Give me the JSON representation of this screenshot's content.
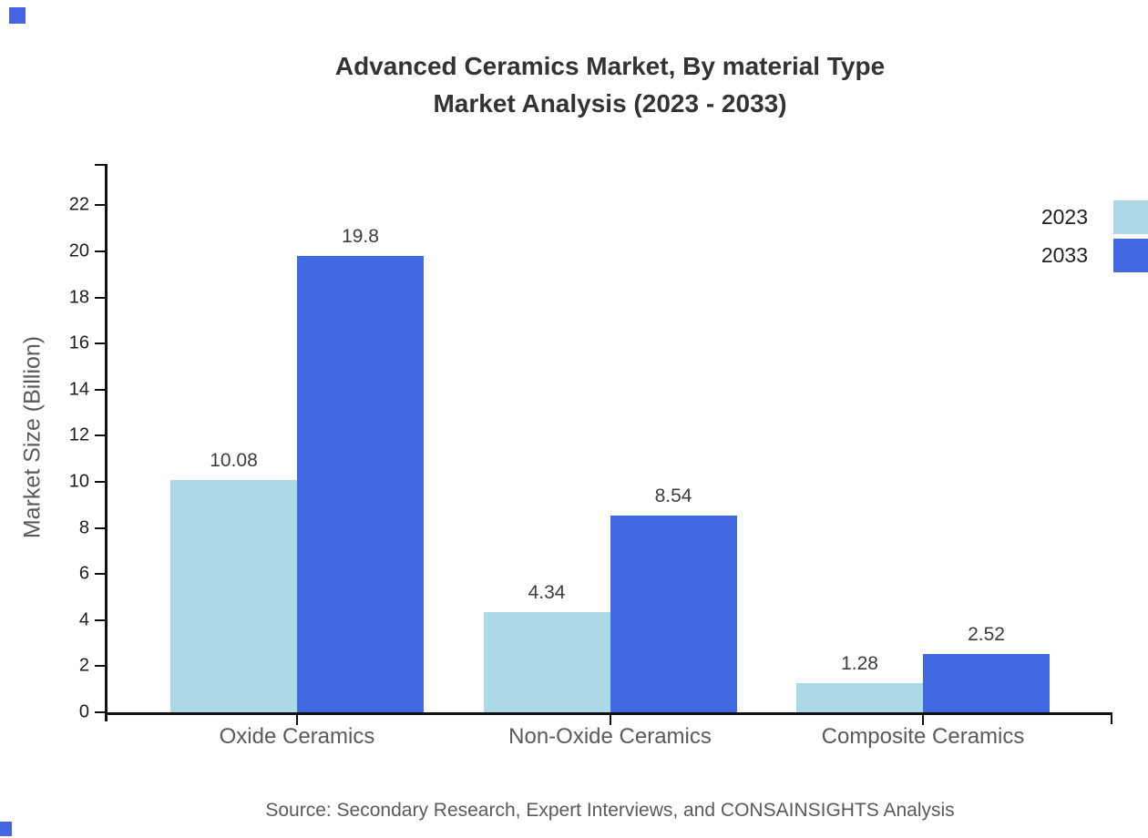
{
  "title": {
    "line1": "Advanced Ceramics Market, By material Type",
    "line2": "Market Analysis (2023 - 2033)"
  },
  "source_note": "Source: Secondary Research, Expert Interviews, and CONSAINSIGHTS Analysis",
  "chart_data": {
    "type": "bar",
    "title": "Advanced Ceramics Market, By material Type Market Analysis (2023 - 2033)",
    "xlabel": "",
    "ylabel": "Market Size (Billion)",
    "categories": [
      "Oxide Ceramics",
      "Non-Oxide Ceramics",
      "Composite Ceramics"
    ],
    "series": [
      {
        "name": "2023",
        "color": "#ADD8E6",
        "values": [
          10.08,
          4.34,
          1.28
        ]
      },
      {
        "name": "2033",
        "color": "#4169E1",
        "values": [
          19.8,
          8.54,
          2.52
        ]
      }
    ],
    "value_labels": [
      [
        "10.08",
        "4.34",
        "1.28"
      ],
      [
        "19.8",
        "8.54",
        "2.52"
      ]
    ],
    "yticks": [
      0,
      2,
      4,
      6,
      8,
      10,
      12,
      14,
      16,
      18,
      20,
      22
    ],
    "ylim": [
      0,
      23.8
    ],
    "grid": false,
    "legend_position": "right-edge"
  },
  "colors": {
    "axis": "#111111",
    "tick_label": "#1c1c1c",
    "category_label": "#5a5a5a",
    "title": "#333333",
    "value_label": "#3d3d3d",
    "muted_text": "#5a5a5a",
    "watermark": "#4565e0"
  }
}
